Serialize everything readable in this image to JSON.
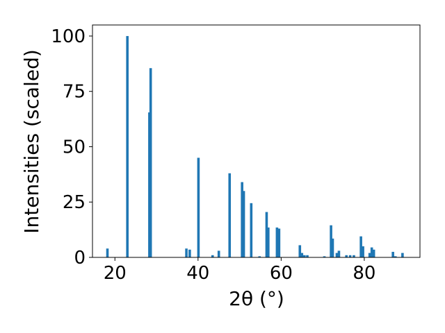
{
  "chart_data": {
    "type": "bar",
    "xlabel": "2θ (°)",
    "ylabel": "Intensities (scaled)",
    "xlim": [
      14.6,
      93.4
    ],
    "ylim": [
      0,
      105
    ],
    "xticks": [
      20,
      40,
      60,
      80
    ],
    "yticks": [
      0,
      25,
      50,
      75,
      100
    ],
    "grid": false,
    "bar_color": "#1f77b4",
    "bar_width": 0.6,
    "series": [
      {
        "x": [
          18.2,
          23.0,
          28.3,
          28.6,
          37.2,
          38.0,
          40.1,
          43.5,
          45.0,
          47.6,
          50.6,
          51.0,
          52.8,
          54.8,
          56.5,
          56.9,
          59.0,
          59.5,
          64.5,
          65.0,
          65.6,
          66.3,
          70.4,
          72.0,
          72.4,
          73.4,
          73.9,
          75.7,
          76.6,
          77.5,
          79.2,
          79.7,
          81.3,
          81.8,
          82.3,
          86.9,
          87.5,
          89.2
        ],
        "values": [
          4,
          100,
          65.5,
          85.5,
          4,
          3.5,
          45,
          1,
          3,
          38,
          34,
          30,
          24.5,
          0.5,
          20.5,
          13.5,
          13.5,
          13,
          5.5,
          2,
          1,
          1,
          0.5,
          14.5,
          8.5,
          2,
          3,
          1,
          1,
          1,
          9.5,
          5,
          2,
          4.5,
          3.5,
          2.5,
          0.5,
          2
        ]
      }
    ]
  }
}
